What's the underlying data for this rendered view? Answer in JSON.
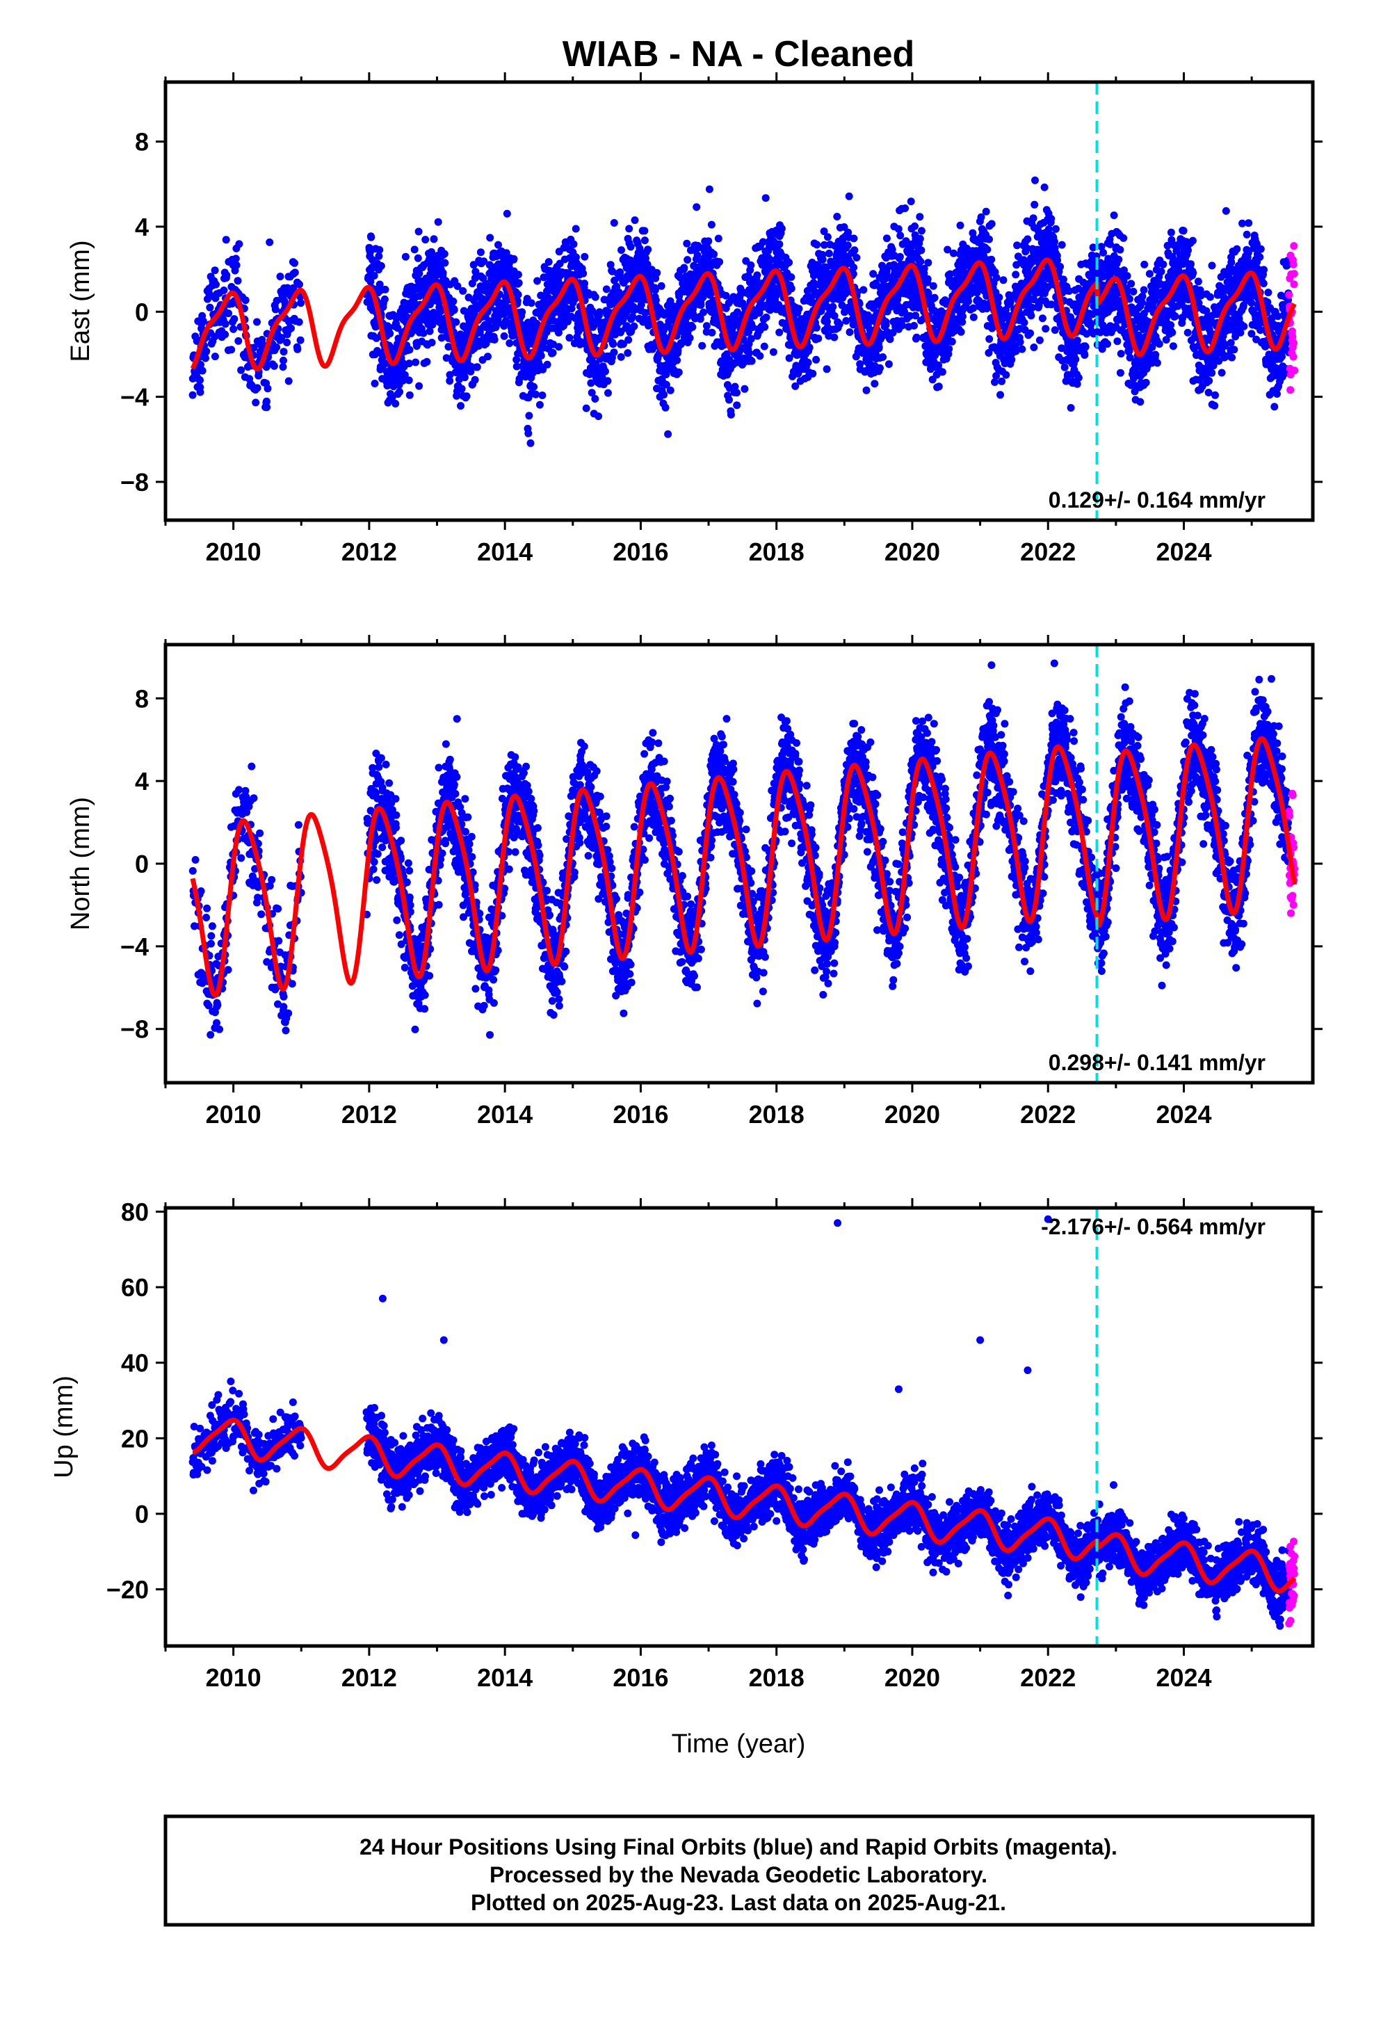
{
  "title": "WIAB  - NA - Cleaned",
  "xlabel": "Time (year)",
  "footer": {
    "line1": "24 Hour Positions Using Final Orbits (blue) and Rapid Orbits (magenta).",
    "line2": "Processed by the Nevada Geodetic Laboratory.",
    "line3": "Plotted on 2025-Aug-23. Last data on 2025-Aug-21."
  },
  "colors": {
    "final_orbits": "#0000ff",
    "rapid_orbits": "#ff00ff",
    "model_fit": "#ff0000",
    "equipment_change": "#00e0e0"
  },
  "chart_data": [
    {
      "type": "scatter",
      "panel": "east",
      "ylabel": "East (mm)",
      "xlim": [
        2009.0,
        2025.9
      ],
      "ylim": [
        -9.8,
        10.8
      ],
      "xticks": [
        2010,
        2012,
        2014,
        2016,
        2018,
        2020,
        2022,
        2024
      ],
      "yticks": [
        -8,
        -4,
        0,
        4,
        8
      ],
      "rate_label": "0.129+/- 0.164 mm/yr",
      "break_year": 2022.72,
      "data_start": 2009.4,
      "data_end": 2025.63,
      "rapid_start": 2025.55,
      "model": {
        "offset_before": 0.0,
        "trend_before": 0.129,
        "offset_after": -1.0,
        "trend_after": 0.129,
        "annual_amp": 1.6,
        "annual_phase": 2.2,
        "semiannual_amp": 0.5,
        "semiannual_phase": 0.8,
        "ref_year": 2016.0,
        "scatter_sigma": 1.2
      },
      "series": [
        {
          "name": "",
          "kind": "final",
          "points_note": ""
        },
        {
          "name": "",
          "kind": "rapid"
        },
        {
          "name": "",
          "kind": "model"
        }
      ]
    },
    {
      "type": "scatter",
      "panel": "north",
      "ylabel": "North (mm)",
      "xlim": [
        2009.0,
        2025.9
      ],
      "ylim": [
        -10.6,
        10.6
      ],
      "xticks": [
        2010,
        2012,
        2014,
        2016,
        2018,
        2020,
        2022,
        2024
      ],
      "yticks": [
        -8,
        -4,
        0,
        4,
        8
      ],
      "rate_label": "0.298+/- 0.141 mm/yr",
      "break_year": 2022.72,
      "data_start": 2009.4,
      "data_end": 2025.63,
      "rapid_start": 2025.55,
      "model": {
        "offset_before": 0.0,
        "trend_before": 0.298,
        "offset_after": -0.5,
        "trend_after": 0.298,
        "annual_amp": 4.0,
        "annual_phase": 0.3,
        "semiannual_amp": 0.7,
        "semiannual_phase": 1.2,
        "ref_year": 2016.0,
        "scatter_sigma": 1.2
      },
      "series": [
        {
          "name": "",
          "kind": "final"
        },
        {
          "name": "",
          "kind": "rapid"
        },
        {
          "name": "",
          "kind": "model"
        }
      ]
    },
    {
      "type": "scatter",
      "panel": "up",
      "ylabel": "Up (mm)",
      "xlim": [
        2009.0,
        2025.9
      ],
      "ylim": [
        -35,
        81
      ],
      "xticks": [
        2010,
        2012,
        2014,
        2016,
        2018,
        2020,
        2022,
        2024
      ],
      "yticks": [
        -20,
        0,
        20,
        40,
        60,
        80
      ],
      "rate_label": "-2.176+/- 0.564 mm/yr",
      "break_year": 2022.72,
      "data_start": 2009.4,
      "data_end": 2025.63,
      "rapid_start": 2025.55,
      "model": {
        "offset_before": 7.0,
        "trend_before": -2.176,
        "offset_after": 5.0,
        "trend_after": -2.176,
        "annual_amp": 4.5,
        "annual_phase": 1.9,
        "semiannual_amp": 1.0,
        "semiannual_phase": 0.5,
        "ref_year": 2016.0,
        "scatter_sigma": 3.5
      },
      "outliers": [
        [
          2012.2,
          57
        ],
        [
          2013.1,
          46
        ],
        [
          2018.9,
          77
        ],
        [
          2021.0,
          46
        ],
        [
          2022.0,
          78
        ],
        [
          2019.8,
          33
        ],
        [
          2021.7,
          38
        ]
      ],
      "series": [
        {
          "name": "",
          "kind": "final"
        },
        {
          "name": "",
          "kind": "rapid"
        },
        {
          "name": "",
          "kind": "model"
        }
      ]
    }
  ]
}
